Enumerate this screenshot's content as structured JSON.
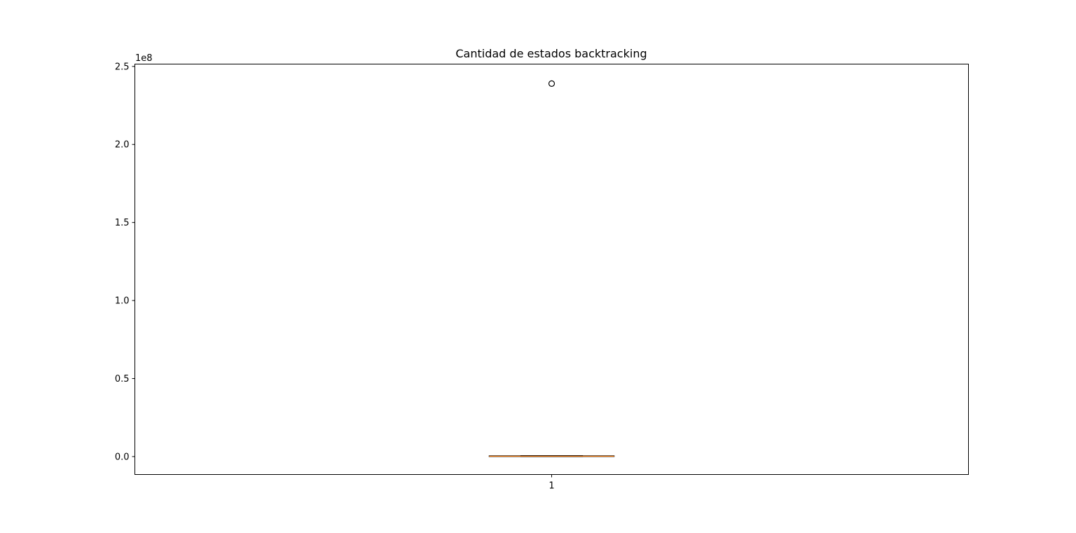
{
  "chart_data": {
    "type": "box",
    "title": "Cantidad de estados backtracking",
    "xlabel": "",
    "ylabel": "",
    "categories": [
      "1"
    ],
    "y_scale_label": "1e8",
    "y_tick_values": [
      0,
      0.5,
      1.0,
      1.5,
      2.0,
      2.5
    ],
    "y_tick_labels": [
      "0.0",
      "0.5",
      "1.0",
      "1.5",
      "2.0",
      "2.5"
    ],
    "ylim": [
      -0.115,
      2.515
    ],
    "boxes": [
      {
        "category": "1",
        "whisker_low": 0.0,
        "q1": 0.0,
        "median": 0.002,
        "q3": 0.005,
        "whisker_high": 0.006,
        "outliers": [
          2.39
        ]
      }
    ],
    "grid": false,
    "colors": {
      "box": "#000000",
      "median": "#ff7f0e",
      "outlier_edge": "#000000"
    }
  }
}
